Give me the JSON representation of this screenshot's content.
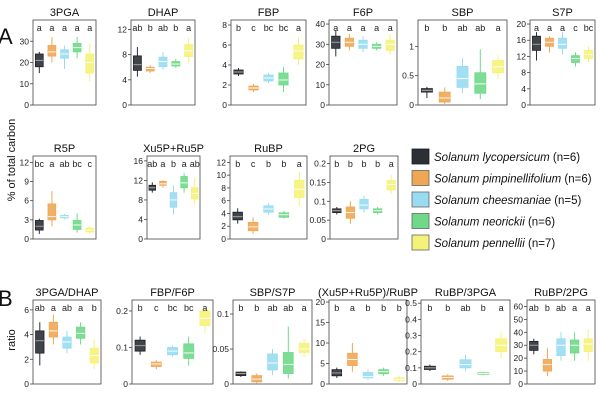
{
  "colors": [
    "#2b2f36",
    "#f0a755",
    "#99dcf2",
    "#6fd989",
    "#f5f27a"
  ],
  "panel_labels": [
    "A",
    "B"
  ],
  "legend": [
    {
      "species": "Solanum lycopersicum",
      "n": "(n=6)"
    },
    {
      "species": "Solanum pimpinellifolium",
      "n": "(n=6)"
    },
    {
      "species": "Solanum cheesmaniae",
      "n": "(n=5)"
    },
    {
      "species": "Solanum neorickii",
      "n": "(n=6)"
    },
    {
      "species": "Solanum pennellii",
      "n": "(n=7)"
    }
  ],
  "chart_data": [
    {
      "type": "box",
      "panel": "A",
      "title": "3PGA",
      "ylabel": "% of total carbon",
      "ylim": [
        0,
        40
      ],
      "yticks": [
        0,
        10,
        20,
        30
      ],
      "letters": [
        "a",
        "a",
        "a",
        "a",
        "a"
      ],
      "boxes": [
        {
          "q1": 18,
          "med": 21,
          "q3": 24,
          "lo": 15,
          "hi": 25
        },
        {
          "q1": 23,
          "med": 25,
          "q3": 28,
          "lo": 20,
          "hi": 32
        },
        {
          "q1": 22,
          "med": 24,
          "q3": 26,
          "lo": 17,
          "hi": 28
        },
        {
          "q1": 25,
          "med": 27,
          "q3": 29,
          "lo": 22,
          "hi": 32
        },
        {
          "q1": 15,
          "med": 20,
          "q3": 24,
          "lo": 11,
          "hi": 29
        }
      ]
    },
    {
      "type": "box",
      "panel": "A",
      "title": "DHAP",
      "ylim": [
        0,
        13.5
      ],
      "yticks": [
        0,
        4,
        8,
        12
      ],
      "letters": [
        "ab",
        "b",
        "ab",
        "b",
        "a"
      ],
      "boxes": [
        {
          "q1": 5.5,
          "med": 6.4,
          "q3": 7.8,
          "lo": 4.5,
          "hi": 9.2
        },
        {
          "q1": 5.4,
          "med": 5.8,
          "q3": 6,
          "lo": 5.1,
          "hi": 6.3
        },
        {
          "q1": 6.1,
          "med": 6.9,
          "q3": 7.6,
          "lo": 5.6,
          "hi": 8.4
        },
        {
          "q1": 6.2,
          "med": 6.5,
          "q3": 6.9,
          "lo": 5.9,
          "hi": 7.3
        },
        {
          "q1": 7.7,
          "med": 8.6,
          "q3": 9.6,
          "lo": 6.6,
          "hi": 10.6
        }
      ]
    },
    {
      "type": "box",
      "panel": "A",
      "title": "FBP",
      "ylim": [
        0,
        8.5
      ],
      "yticks": [
        0,
        2,
        4,
        6,
        8
      ],
      "letters": [
        "b",
        "c",
        "bc",
        "bc",
        "a"
      ],
      "boxes": [
        {
          "q1": 3.1,
          "med": 3.3,
          "q3": 3.5,
          "lo": 2.9,
          "hi": 3.7
        },
        {
          "q1": 1.5,
          "med": 1.7,
          "q3": 1.9,
          "lo": 1.3,
          "hi": 2.1
        },
        {
          "q1": 2.4,
          "med": 2.7,
          "q3": 3.0,
          "lo": 2.2,
          "hi": 3.2
        },
        {
          "q1": 2.0,
          "med": 2.5,
          "q3": 3.2,
          "lo": 1.3,
          "hi": 3.8
        },
        {
          "q1": 4.6,
          "med": 5.4,
          "q3": 6.0,
          "lo": 4.0,
          "hi": 6.8
        }
      ]
    },
    {
      "type": "box",
      "panel": "A",
      "title": "F6P",
      "ylim": [
        0,
        42
      ],
      "yticks": [
        0,
        10,
        20,
        30,
        40
      ],
      "letters": [
        "a",
        "a",
        "a",
        "a",
        "a"
      ],
      "boxes": [
        {
          "q1": 28,
          "med": 31,
          "q3": 34,
          "lo": 24,
          "hi": 37
        },
        {
          "q1": 29,
          "med": 31,
          "q3": 33,
          "lo": 27,
          "hi": 35
        },
        {
          "q1": 28,
          "med": 30,
          "q3": 32,
          "lo": 26,
          "hi": 34
        },
        {
          "q1": 28,
          "med": 29,
          "q3": 30,
          "lo": 27,
          "hi": 31
        },
        {
          "q1": 27,
          "med": 30,
          "q3": 32,
          "lo": 25,
          "hi": 35
        }
      ]
    },
    {
      "type": "box",
      "panel": "A",
      "title": "SBP",
      "ylim": [
        0,
        1.45
      ],
      "yticks": [
        0,
        0.5,
        1.0
      ],
      "letters": [
        "b",
        "b",
        "ab",
        "ab",
        "a"
      ],
      "boxes": [
        {
          "q1": 0.22,
          "med": 0.25,
          "q3": 0.28,
          "lo": 0.12,
          "hi": 0.31
        },
        {
          "q1": 0.05,
          "med": 0.12,
          "q3": 0.22,
          "lo": 0.02,
          "hi": 0.3
        },
        {
          "q1": 0.3,
          "med": 0.45,
          "q3": 0.66,
          "lo": 0.2,
          "hi": 0.8
        },
        {
          "q1": 0.2,
          "med": 0.36,
          "q3": 0.55,
          "lo": 0.1,
          "hi": 0.95
        },
        {
          "q1": 0.55,
          "med": 0.65,
          "q3": 0.76,
          "lo": 0.44,
          "hi": 0.85
        }
      ]
    },
    {
      "type": "box",
      "panel": "A",
      "title": "S7P",
      "ylim": [
        0,
        21
      ],
      "yticks": [
        0,
        4,
        8,
        12,
        16,
        20
      ],
      "letters": [
        "a",
        "a",
        "a",
        "c",
        "bc"
      ],
      "boxes": [
        {
          "q1": 13.5,
          "med": 15,
          "q3": 17,
          "lo": 11,
          "hi": 18
        },
        {
          "q1": 14.5,
          "med": 15.5,
          "q3": 16.5,
          "lo": 13,
          "hi": 17
        },
        {
          "q1": 14,
          "med": 15,
          "q3": 16.5,
          "lo": 12.5,
          "hi": 18
        },
        {
          "q1": 10.5,
          "med": 11.5,
          "q3": 12.2,
          "lo": 9.5,
          "hi": 13
        },
        {
          "q1": 11.5,
          "med": 12.5,
          "q3": 13.5,
          "lo": 10.5,
          "hi": 14.5
        }
      ]
    },
    {
      "type": "box",
      "panel": "A",
      "title": "R5P",
      "ylim": [
        0,
        13
      ],
      "yticks": [
        0,
        3,
        6,
        9,
        12
      ],
      "letters": [
        "bc",
        "a",
        "ab",
        "bc",
        "c"
      ],
      "boxes": [
        {
          "q1": 1.4,
          "med": 2.0,
          "q3": 2.9,
          "lo": 0.8,
          "hi": 3.2
        },
        {
          "q1": 3.0,
          "med": 3.5,
          "q3": 5.5,
          "lo": 2.0,
          "hi": 7.5
        },
        {
          "q1": 3.3,
          "med": 3.5,
          "q3": 3.7,
          "lo": 3.1,
          "hi": 3.9
        },
        {
          "q1": 1.5,
          "med": 2.2,
          "q3": 2.9,
          "lo": 1.0,
          "hi": 4.0
        },
        {
          "q1": 1.1,
          "med": 1.4,
          "q3": 1.7,
          "lo": 0.8,
          "hi": 2.0
        }
      ]
    },
    {
      "type": "box",
      "panel": "A",
      "title": "Xu5P+Ru5P",
      "ylim": [
        0,
        17
      ],
      "yticks": [
        0,
        4,
        8,
        12,
        16
      ],
      "letters": [
        "ab",
        "a",
        "b",
        "a",
        "ab"
      ],
      "boxes": [
        {
          "q1": 10,
          "med": 10.5,
          "q3": 11,
          "lo": 9.5,
          "hi": 11.6
        },
        {
          "q1": 11,
          "med": 11.3,
          "q3": 11.8,
          "lo": 10.5,
          "hi": 12
        },
        {
          "q1": 6.5,
          "med": 8,
          "q3": 9.5,
          "lo": 5,
          "hi": 11
        },
        {
          "q1": 10.5,
          "med": 11.5,
          "q3": 12.8,
          "lo": 9.5,
          "hi": 13.5
        },
        {
          "q1": 8.2,
          "med": 9.3,
          "q3": 10.5,
          "lo": 7,
          "hi": 12.5
        }
      ]
    },
    {
      "type": "box",
      "panel": "A",
      "title": "RuBP",
      "ylim": [
        0,
        13
      ],
      "yticks": [
        0,
        2,
        4,
        6,
        8,
        10,
        12
      ],
      "letters": [
        "b",
        "c",
        "b",
        "b",
        "a"
      ],
      "boxes": [
        {
          "q1": 3.0,
          "med": 3.5,
          "q3": 4.2,
          "lo": 2.4,
          "hi": 4.8
        },
        {
          "q1": 1.3,
          "med": 1.9,
          "q3": 2.6,
          "lo": 0.8,
          "hi": 3.4
        },
        {
          "q1": 4.2,
          "med": 4.7,
          "q3": 5.2,
          "lo": 3.8,
          "hi": 5.6
        },
        {
          "q1": 3.4,
          "med": 3.8,
          "q3": 4.1,
          "lo": 3.2,
          "hi": 4.4
        },
        {
          "q1": 6.5,
          "med": 7.8,
          "q3": 9.2,
          "lo": 5.2,
          "hi": 10.5
        }
      ]
    },
    {
      "type": "box",
      "panel": "A",
      "title": "2PG",
      "ylim": [
        0,
        0.22
      ],
      "yticks": [
        0,
        0.05,
        0.1,
        0.15,
        0.2
      ],
      "letters": [
        "b",
        "b",
        "b",
        "b",
        "a"
      ],
      "boxes": [
        {
          "q1": 0.07,
          "med": 0.075,
          "q3": 0.08,
          "lo": 0.065,
          "hi": 0.085
        },
        {
          "q1": 0.055,
          "med": 0.07,
          "q3": 0.085,
          "lo": 0.04,
          "hi": 0.1
        },
        {
          "q1": 0.08,
          "med": 0.09,
          "q3": 0.105,
          "lo": 0.07,
          "hi": 0.115
        },
        {
          "q1": 0.07,
          "med": 0.075,
          "q3": 0.08,
          "lo": 0.065,
          "hi": 0.085
        },
        {
          "q1": 0.13,
          "med": 0.145,
          "q3": 0.155,
          "lo": 0.12,
          "hi": 0.17
        }
      ]
    },
    {
      "type": "box",
      "panel": "B",
      "title": "3PGA/DHAP",
      "ylabel": "ratio",
      "ylim": [
        0,
        6.8
      ],
      "yticks": [
        0,
        2,
        4,
        6
      ],
      "letters": [
        "ab",
        "a",
        "ab",
        "a",
        "b"
      ],
      "boxes": [
        {
          "q1": 2.5,
          "med": 3.5,
          "q3": 4.3,
          "lo": 1.5,
          "hi": 5.0
        },
        {
          "q1": 3.8,
          "med": 4.3,
          "q3": 5.0,
          "lo": 3.2,
          "hi": 5.6
        },
        {
          "q1": 2.9,
          "med": 3.4,
          "q3": 3.8,
          "lo": 2.5,
          "hi": 4.3
        },
        {
          "q1": 3.7,
          "med": 4.1,
          "q3": 4.6,
          "lo": 3.2,
          "hi": 5.0
        },
        {
          "q1": 1.7,
          "med": 2.3,
          "q3": 2.9,
          "lo": 1.2,
          "hi": 3.6
        }
      ]
    },
    {
      "type": "box",
      "panel": "B",
      "title": "FBP/F6P",
      "ylim": [
        0,
        0.23
      ],
      "yticks": [
        0,
        0.1,
        0.2
      ],
      "letters": [
        "b",
        "c",
        "bc",
        "bc",
        "a"
      ],
      "boxes": [
        {
          "q1": 0.09,
          "med": 0.105,
          "q3": 0.12,
          "lo": 0.08,
          "hi": 0.13
        },
        {
          "q1": 0.048,
          "med": 0.055,
          "q3": 0.06,
          "lo": 0.04,
          "hi": 0.065
        },
        {
          "q1": 0.08,
          "med": 0.09,
          "q3": 0.1,
          "lo": 0.075,
          "hi": 0.105
        },
        {
          "q1": 0.07,
          "med": 0.085,
          "q3": 0.11,
          "lo": 0.05,
          "hi": 0.13
        },
        {
          "q1": 0.16,
          "med": 0.18,
          "q3": 0.2,
          "lo": 0.14,
          "hi": 0.21
        }
      ]
    },
    {
      "type": "box",
      "panel": "B",
      "title": "SBP/S7P",
      "ylim": [
        0,
        0.12
      ],
      "yticks": [
        0,
        0.05,
        0.1
      ],
      "letters": [
        "b",
        "b",
        "ab",
        "ab",
        "a"
      ],
      "boxes": [
        {
          "q1": 0.012,
          "med": 0.015,
          "q3": 0.017,
          "lo": 0.01,
          "hi": 0.018
        },
        {
          "q1": 0.003,
          "med": 0.007,
          "q3": 0.012,
          "lo": 0.001,
          "hi": 0.015
        },
        {
          "q1": 0.02,
          "med": 0.03,
          "q3": 0.043,
          "lo": 0.013,
          "hi": 0.05
        },
        {
          "q1": 0.015,
          "med": 0.028,
          "q3": 0.045,
          "lo": 0.008,
          "hi": 0.082
        },
        {
          "q1": 0.045,
          "med": 0.05,
          "q3": 0.058,
          "lo": 0.038,
          "hi": 0.065
        }
      ]
    },
    {
      "type": "box",
      "panel": "B",
      "title": "(Xu5P+Ru5P)/RuBP",
      "ylim": [
        0,
        20.5
      ],
      "yticks": [
        0,
        5,
        10,
        15,
        20
      ],
      "letters": [
        "b",
        "a",
        "b",
        "b",
        "b"
      ],
      "boxes": [
        {
          "q1": 2.0,
          "med": 2.7,
          "q3": 3.5,
          "lo": 1.5,
          "hi": 4.0
        },
        {
          "q1": 4.5,
          "med": 6.0,
          "q3": 7.5,
          "lo": 3.0,
          "hi": 10.0
        },
        {
          "q1": 1.5,
          "med": 1.8,
          "q3": 2.8,
          "lo": 1.0,
          "hi": 3.5
        },
        {
          "q1": 2.5,
          "med": 3.0,
          "q3": 3.5,
          "lo": 2.0,
          "hi": 4.0
        },
        {
          "q1": 0.8,
          "med": 1.1,
          "q3": 1.5,
          "lo": 0.5,
          "hi": 2.0
        }
      ]
    },
    {
      "type": "box",
      "panel": "B",
      "title": "RuBP/3PGA",
      "ylim": [
        0,
        0.52
      ],
      "yticks": [
        0,
        0.1,
        0.2,
        0.3,
        0.4,
        0.5
      ],
      "letters": [
        "b",
        "b",
        "ab",
        "b",
        "a"
      ],
      "boxes": [
        {
          "q1": 0.09,
          "med": 0.1,
          "q3": 0.11,
          "lo": 0.08,
          "hi": 0.12
        },
        {
          "q1": 0.03,
          "med": 0.04,
          "q3": 0.05,
          "lo": 0.02,
          "hi": 0.06
        },
        {
          "q1": 0.1,
          "med": 0.12,
          "q3": 0.15,
          "lo": 0.08,
          "hi": 0.18
        },
        {
          "q1": 0.06,
          "med": 0.065,
          "q3": 0.07,
          "lo": 0.055,
          "hi": 0.075
        },
        {
          "q1": 0.2,
          "med": 0.24,
          "q3": 0.28,
          "lo": 0.16,
          "hi": 0.32
        }
      ]
    },
    {
      "type": "box",
      "panel": "B",
      "title": "RuBP/2PG",
      "ylim": [
        0,
        65
      ],
      "yticks": [
        0,
        10,
        20,
        30,
        40,
        50,
        60
      ],
      "letters": [
        "ab",
        "b",
        "ab",
        "a",
        "a"
      ],
      "boxes": [
        {
          "q1": 26,
          "med": 30,
          "q3": 33,
          "lo": 23,
          "hi": 35
        },
        {
          "q1": 10,
          "med": 15,
          "q3": 19,
          "lo": 6,
          "hi": 28
        },
        {
          "q1": 22,
          "med": 30,
          "q3": 35,
          "lo": 18,
          "hi": 40
        },
        {
          "q1": 24,
          "med": 30,
          "q3": 34,
          "lo": 18,
          "hi": 40
        },
        {
          "q1": 25,
          "med": 31,
          "q3": 35,
          "lo": 18,
          "hi": 42
        }
      ]
    }
  ]
}
